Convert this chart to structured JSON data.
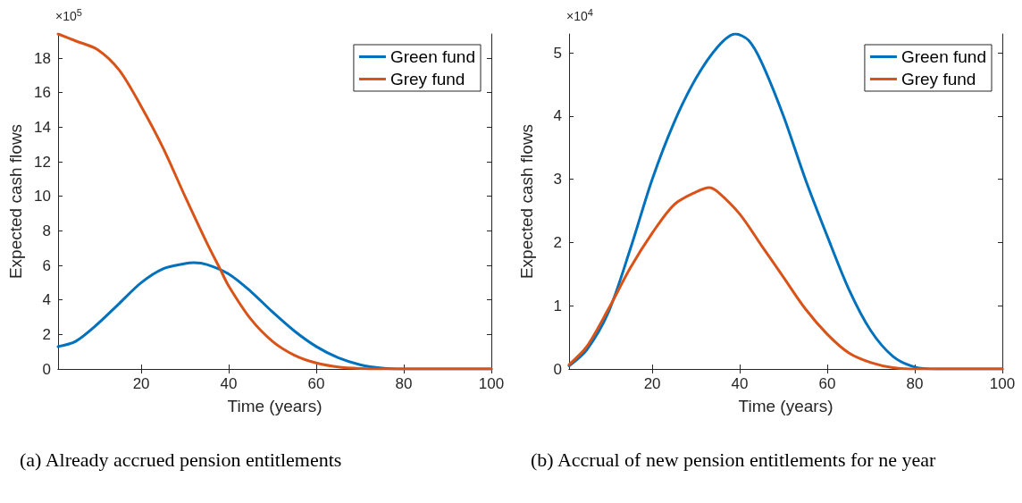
{
  "chart_data": [
    {
      "type": "line",
      "xlabel": "Time (years)",
      "ylabel": "Expected cash flows",
      "annotations": [
        "×10$^{5}$",
        "(a) Already accrued pension entitlements"
      ],
      "xlim": [
        1,
        100
      ],
      "xticks": [
        20,
        40,
        60,
        80,
        100
      ],
      "ylim": [
        0,
        19.4
      ],
      "yticks": [
        0,
        2,
        4,
        6,
        8,
        10,
        12,
        14,
        16,
        18
      ],
      "grid": false,
      "legend": "top right",
      "marker": "none",
      "line_style": "solid",
      "series": [
        {
          "name": "Green fund",
          "color": "#0072bd",
          "x": [
            1,
            5,
            10,
            15,
            20,
            25,
            30,
            32,
            35,
            40,
            45,
            50,
            55,
            60,
            65,
            70,
            75,
            80,
            100
          ],
          "values": [
            1.3,
            1.6,
            2.6,
            3.8,
            5.0,
            5.8,
            6.1,
            6.15,
            6.05,
            5.5,
            4.5,
            3.3,
            2.2,
            1.3,
            0.65,
            0.25,
            0.05,
            0,
            0
          ]
        },
        {
          "name": "Grey fund",
          "color": "#d95319",
          "x": [
            1,
            5,
            10,
            15,
            20,
            25,
            30,
            35,
            38,
            40,
            45,
            50,
            55,
            60,
            65,
            70,
            75,
            80,
            100
          ],
          "values": [
            19.4,
            19.0,
            18.5,
            17.3,
            15.2,
            12.8,
            10.0,
            7.3,
            5.8,
            4.8,
            2.9,
            1.6,
            0.8,
            0.35,
            0.12,
            0.03,
            0,
            0,
            0
          ]
        }
      ]
    },
    {
      "type": "line",
      "xlabel": "Time (years)",
      "ylabel": "Expected cash flows",
      "annotations": [
        "×10$^{4}$",
        "(b) Accrual of new pension entitlements for ne year"
      ],
      "xlim": [
        1,
        100
      ],
      "xticks": [
        20,
        40,
        60,
        80,
        100
      ],
      "ylim": [
        0,
        5.3
      ],
      "yticks": [
        0,
        1,
        2,
        3,
        4,
        5
      ],
      "grid": false,
      "legend": "top right",
      "marker": "none",
      "line_style": "solid",
      "series": [
        {
          "name": "Green fund",
          "color": "#0072bd",
          "x": [
            1,
            5,
            10,
            15,
            20,
            25,
            30,
            35,
            39,
            42,
            45,
            50,
            55,
            60,
            65,
            70,
            75,
            80,
            85,
            100
          ],
          "values": [
            0.05,
            0.3,
            0.9,
            1.9,
            3.0,
            3.9,
            4.6,
            5.1,
            5.3,
            5.2,
            4.85,
            4.0,
            3.0,
            2.1,
            1.25,
            0.6,
            0.2,
            0.03,
            0,
            0
          ]
        },
        {
          "name": "Grey fund",
          "color": "#d95319",
          "x": [
            1,
            5,
            10,
            15,
            20,
            25,
            30,
            33,
            35,
            40,
            45,
            50,
            55,
            60,
            65,
            70,
            75,
            80,
            100
          ],
          "values": [
            0.07,
            0.35,
            0.95,
            1.6,
            2.15,
            2.6,
            2.8,
            2.87,
            2.8,
            2.45,
            1.95,
            1.45,
            0.95,
            0.55,
            0.25,
            0.1,
            0.02,
            0,
            0
          ]
        }
      ]
    }
  ]
}
